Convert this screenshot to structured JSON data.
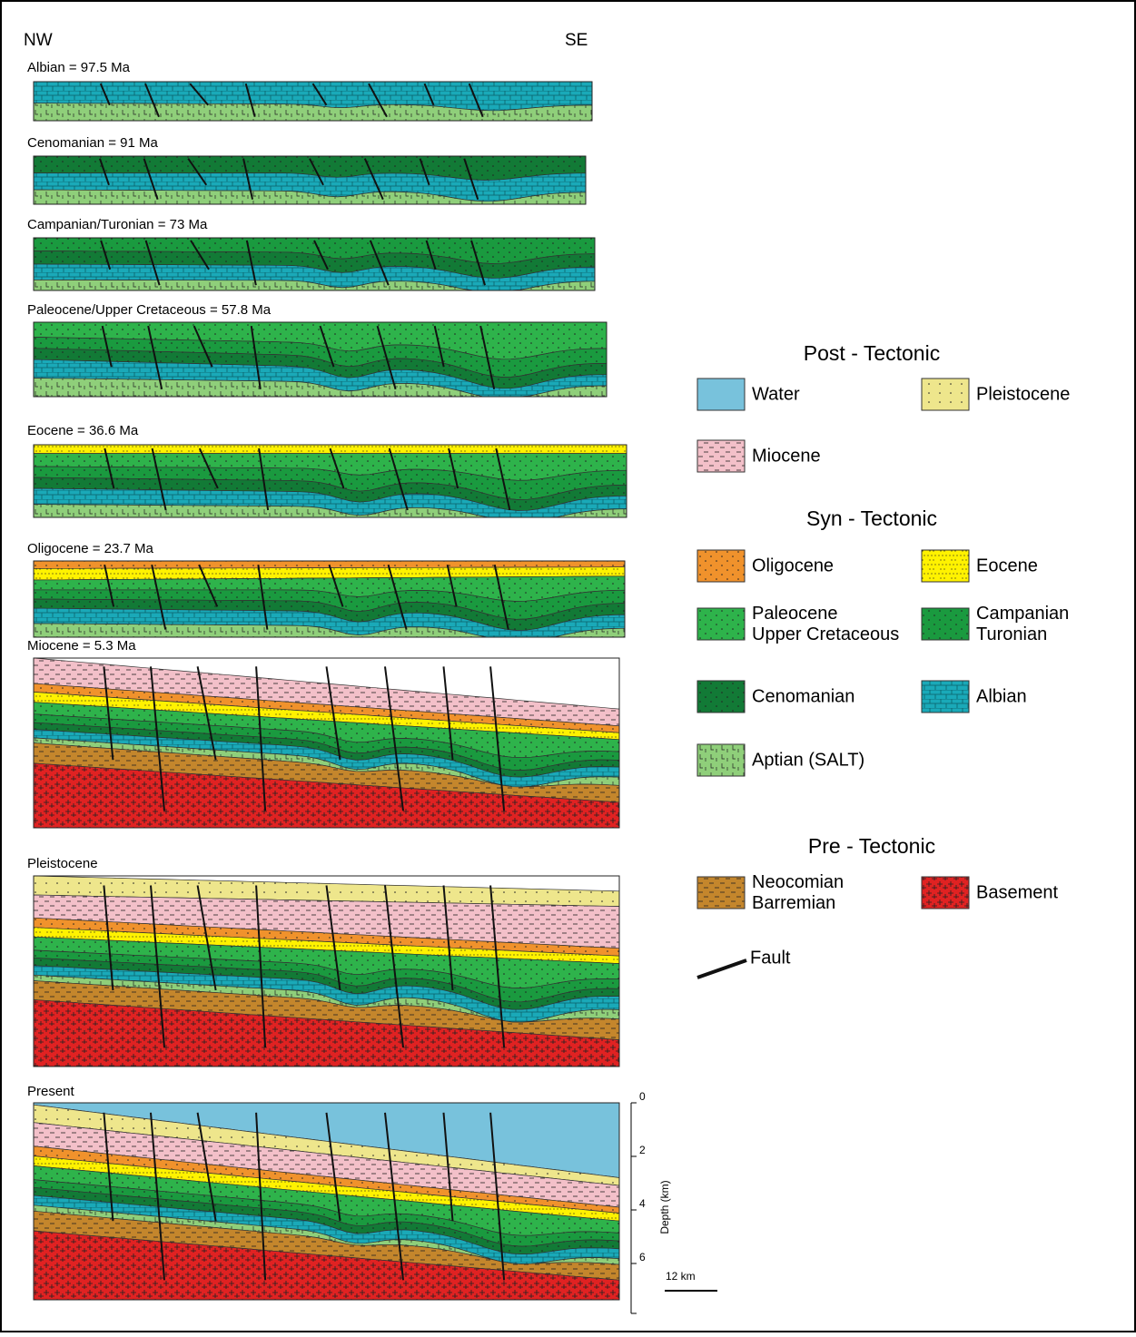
{
  "header": {
    "left": "NW",
    "right": "SE"
  },
  "sections": [
    {
      "label": "Albian = 97.5 Ma"
    },
    {
      "label": "Cenomanian = 91 Ma"
    },
    {
      "label": "Campanian/Turonian = 73 Ma"
    },
    {
      "label": "Paleocene/Upper Cretaceous = 57.8 Ma"
    },
    {
      "label": "Eocene = 36.6 Ma"
    },
    {
      "label": "Oligocene = 23.7 Ma"
    },
    {
      "label": "Miocene = 5.3 Ma"
    },
    {
      "label": "Pleistocene"
    },
    {
      "label": "Present"
    }
  ],
  "legend": {
    "groups": [
      "Post - Tectonic",
      "Syn - Tectonic",
      "Pre - Tectonic"
    ],
    "items": [
      {
        "label": [
          "Water"
        ],
        "color": "#78c2dc"
      },
      {
        "label": [
          "Pleistocene"
        ],
        "color": "#eee68c"
      },
      {
        "label": [
          "Miocene"
        ],
        "color": "#f3c0c9"
      },
      {
        "label": [
          "Oligocene"
        ],
        "color": "#f0922c"
      },
      {
        "label": [
          "Eocene"
        ],
        "color": "#fff200"
      },
      {
        "label": [
          "Paleocene",
          "Upper Cretaceous"
        ],
        "color": "#2eb34b"
      },
      {
        "label": [
          "Campanian",
          "Turonian"
        ],
        "color": "#1a9a3f"
      },
      {
        "label": [
          "Cenomanian"
        ],
        "color": "#127a36"
      },
      {
        "label": [
          "Albian"
        ],
        "color": "#1aa9b8"
      },
      {
        "label": [
          "Aptian (SALT)"
        ],
        "color": "#8fcf7a"
      },
      {
        "label": [
          "Neocomian",
          "Barremian"
        ],
        "color": "#c4862c"
      },
      {
        "label": [
          "Basement"
        ],
        "color": "#e02222"
      }
    ],
    "fault": "Fault"
  },
  "depth_axis": {
    "label": "Depth (km)",
    "ticks": [
      0,
      2,
      4,
      6
    ]
  },
  "scale_bar": "12 km"
}
